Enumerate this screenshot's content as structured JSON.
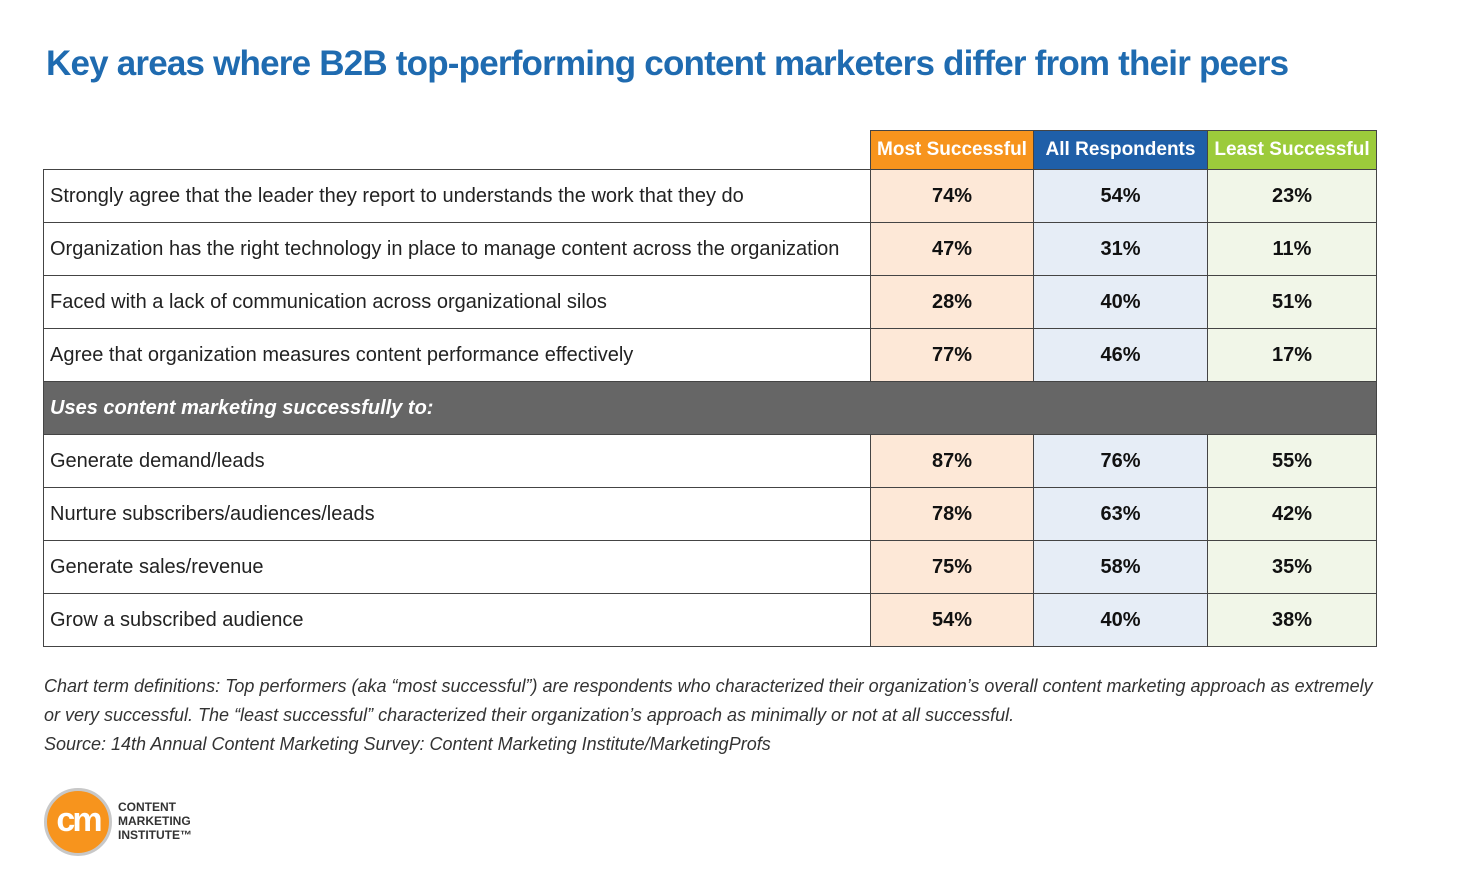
{
  "title": "Key areas where B2B top-performing content marketers differ from their peers",
  "colors": {
    "title": "#1f6bb0",
    "most_successful": "#f7941d",
    "all_respondents": "#1f5fa8",
    "least_successful": "#9ccb3b",
    "section_bar": "#666666"
  },
  "chart_data": {
    "type": "table",
    "columns": [
      "Most Successful",
      "All Respondents",
      "Least Successful"
    ],
    "rows": [
      {
        "label": "Strongly agree that the leader they report to understands the work that they do",
        "values": [
          "74%",
          "54%",
          "23%"
        ]
      },
      {
        "label": "Organization has the right technology in place to manage content across the organization",
        "values": [
          "47%",
          "31%",
          "11%"
        ]
      },
      {
        "label": "Faced with a lack of communication across organizational silos",
        "values": [
          "28%",
          "40%",
          "51%"
        ]
      },
      {
        "label": "Agree that organization measures content performance effectively",
        "values": [
          "77%",
          "46%",
          "17%"
        ]
      }
    ],
    "section": {
      "label": "Uses content marketing successfully to:",
      "rows": [
        {
          "label": "Generate demand/leads",
          "values": [
            "87%",
            "76%",
            "55%"
          ]
        },
        {
          "label": "Nurture subscribers/audiences/leads",
          "values": [
            "78%",
            "63%",
            "42%"
          ]
        },
        {
          "label": "Generate sales/revenue",
          "values": [
            "75%",
            "58%",
            "35%"
          ]
        },
        {
          "label": "Grow a subscribed audience",
          "values": [
            "54%",
            "40%",
            "38%"
          ]
        }
      ]
    }
  },
  "notes": {
    "definitions": "Chart term definitions: Top performers (aka “most successful”) are respondents who characterized their organization’s overall content marketing approach as extremely or very successful. The “least successful” characterized their organization’s approach as minimally or not at all successful.",
    "source": "Source: 14th Annual Content Marketing Survey: Content Marketing Institute/MarketingProfs"
  },
  "logo": {
    "glyph": "cm",
    "lines": [
      "CONTENT",
      "MARKETING",
      "INSTITUTE™"
    ]
  }
}
